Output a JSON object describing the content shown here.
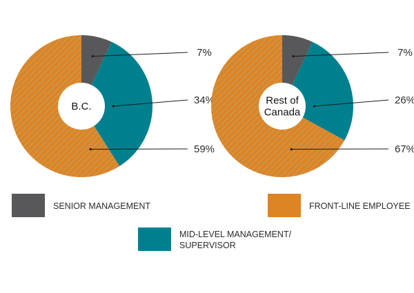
{
  "chart_data": [
    {
      "type": "pie",
      "title": "B.C.",
      "slices": [
        {
          "label": "SENIOR MANAGEMENT",
          "value": 7,
          "display": "7%"
        },
        {
          "label": "MID-LEVEL MANAGEMENT/ SUPERVISOR",
          "value": 34,
          "display": "34%"
        },
        {
          "label": "FRONT-LINE EMPLOYEE",
          "value": 59,
          "display": "59%"
        }
      ]
    },
    {
      "type": "pie",
      "title": "Rest of Canada",
      "title_lines": [
        "Rest of",
        "Canada"
      ],
      "slices": [
        {
          "label": "SENIOR MANAGEMENT",
          "value": 7,
          "display": "7%"
        },
        {
          "label": "MID-LEVEL MANAGEMENT/ SUPERVISOR",
          "value": 26,
          "display": "26%"
        },
        {
          "label": "FRONT-LINE EMPLOYEE",
          "value": 67,
          "display": "67%"
        }
      ]
    }
  ],
  "legend": [
    {
      "label_lines": [
        "SENIOR MANAGEMENT"
      ],
      "color": "#58585a"
    },
    {
      "label_lines": [
        "FRONT-LINE EMPLOYEE"
      ],
      "color": "#dd8424"
    },
    {
      "label_lines": [
        "MID-LEVEL MANAGEMENT/",
        "SUPERVISOR"
      ],
      "color": "#00808f"
    }
  ],
  "colors": {
    "senior": "#58585a",
    "mid": "#00808f",
    "front": "#dd8424",
    "front_hatch": "#b8a97c",
    "leader": "#1a1a1a"
  }
}
